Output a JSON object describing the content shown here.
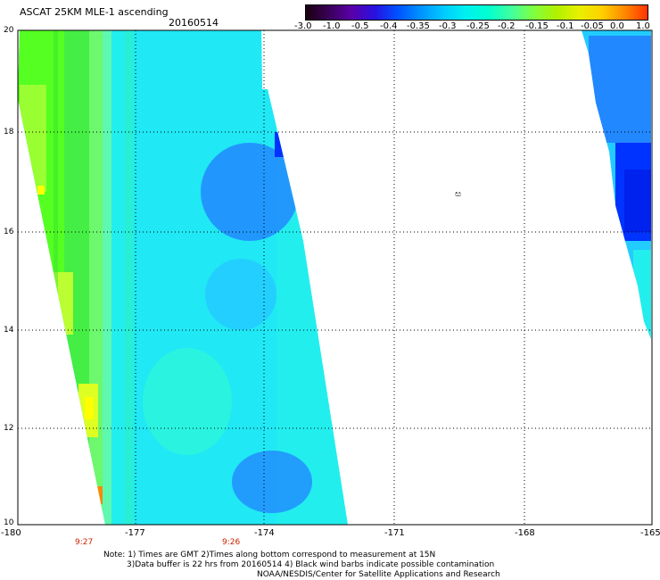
{
  "header": {
    "title": "ASCAT 25KM MLE-1 ascending",
    "date": "20160514"
  },
  "colorbar": {
    "colors": [
      "#1a0010",
      "#3a0058",
      "#5a00a8",
      "#2a10e0",
      "#0050ff",
      "#0090ff",
      "#00c8ff",
      "#00f0f0",
      "#00ffd0",
      "#40ffa0",
      "#80ff40",
      "#b0f000",
      "#e8f000",
      "#ffd000",
      "#ff8800",
      "#ff3300"
    ],
    "tick_labels": [
      "-3.0",
      "-1.0",
      "-0.5",
      "-0.4",
      "-0.35",
      "-0.3",
      "-0.25",
      "-0.2",
      "-0.15",
      "-0.1",
      "-0.05",
      "0.0",
      "1.0"
    ]
  },
  "axes": {
    "y_ticks": [
      "20",
      "18",
      "16",
      "14",
      "12",
      "10"
    ],
    "x_ticks": [
      "-180",
      "-177",
      "-174",
      "-171",
      "-168",
      "-165"
    ]
  },
  "map": {
    "land_label": "ස",
    "swath_colors": {
      "green": "#44ee44",
      "yellowgreen": "#99ff33",
      "cyan": "#22eeee",
      "lightblue": "#22ccff",
      "blue": "#2288ff",
      "deepblue": "#0033ff",
      "yellow": "#ffff00",
      "orange": "#ff8800"
    }
  },
  "time_labels": [
    "9:27",
    "9:26"
  ],
  "notes": {
    "line1": "Note: 1) Times are GMT 2)Times along bottom correspond to measurement at 15N",
    "line2": "3)Data buffer is 22 hrs from 20160514 4) Black wind barbs indicate possible contamination",
    "line3": "NOAA/NESDIS/Center for Satellite Applications and Research"
  }
}
